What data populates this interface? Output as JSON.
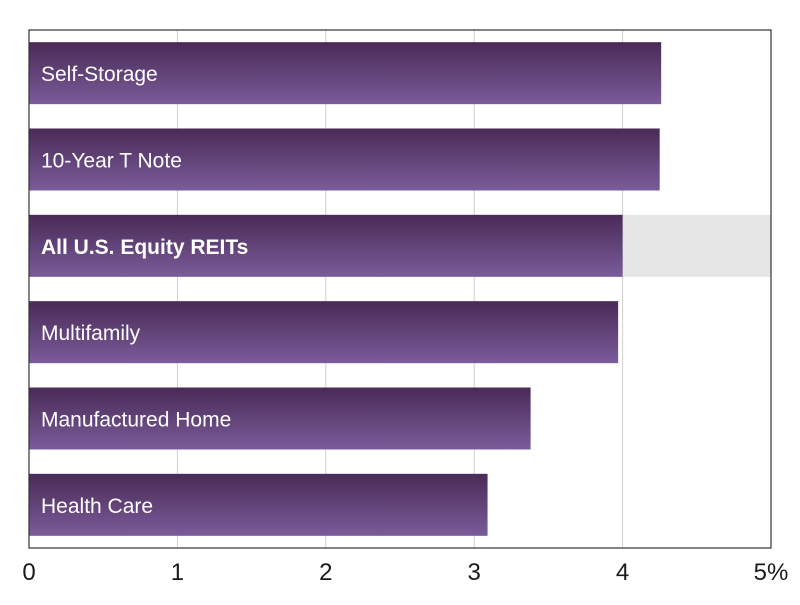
{
  "chart_data": {
    "type": "bar",
    "orientation": "horizontal",
    "categories": [
      "Self-Storage",
      "10-Year T Note",
      "All U.S. Equity REITs",
      "Multifamily",
      "Manufactured Home",
      "Health Care"
    ],
    "values": [
      4.26,
      4.25,
      4.0,
      3.97,
      3.38,
      3.09
    ],
    "highlight_category": "All U.S. Equity REITs",
    "x_ticks": [
      "0",
      "1",
      "2",
      "3",
      "4",
      "5%"
    ],
    "xlim": [
      0,
      5
    ],
    "grid": true,
    "title": "",
    "xlabel": "",
    "ylabel": "",
    "colors": {
      "bar_top": "#4a2a56",
      "bar_bottom": "#7a5c9a",
      "highlight_band": "#e6e6e7",
      "grid": "#cfcfcf",
      "frame": "#333333",
      "label_text": "#ffffff",
      "tick_text": "#1a1a1a"
    }
  }
}
